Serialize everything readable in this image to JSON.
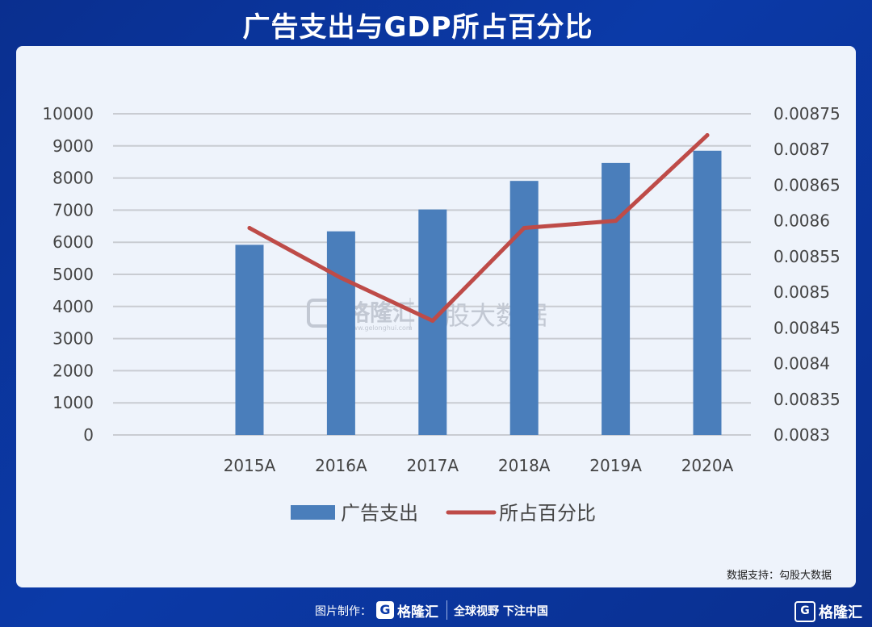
{
  "title": "广告支出与GDP所占百分比",
  "source_label": "数据支持：勾股大数据",
  "watermark": {
    "brand": "格隆汇",
    "sub": "www.gelonghui.com",
    "partner": "勾股大数据"
  },
  "footer": {
    "credit": "图片制作：",
    "logo_text": "格隆汇",
    "slogan": "全球视野 下注中国"
  },
  "corner_logo": "格隆汇",
  "colors": {
    "bar": "#4a7ebb",
    "line": "#be4b48",
    "grid": "#c9ccd2"
  },
  "chart_data": {
    "type": "bar",
    "categories": [
      "2015A",
      "2016A",
      "2017A",
      "2018A",
      "2019A",
      "2020A"
    ],
    "series": [
      {
        "name": "广告支出",
        "type": "bar",
        "axis": "left",
        "values": [
          5920,
          6340,
          7020,
          7910,
          8470,
          8850
        ]
      },
      {
        "name": "所占百分比",
        "type": "line",
        "axis": "right",
        "values": [
          0.00859,
          0.00852,
          0.00846,
          0.00859,
          0.0086,
          0.00872
        ]
      }
    ],
    "y_left": {
      "min": 0,
      "max": 10000,
      "ticks": [
        0,
        1000,
        2000,
        3000,
        4000,
        5000,
        6000,
        7000,
        8000,
        9000,
        10000
      ]
    },
    "y_right": {
      "min": 0.0083,
      "max": 0.00875,
      "ticks": [
        "0.0083",
        "0.00835",
        "0.0084",
        "0.00845",
        "0.0085",
        "0.00855",
        "0.0086",
        "0.00865",
        "0.0087",
        "0.00875"
      ]
    },
    "legend": {
      "position": "bottom"
    },
    "grid": true
  }
}
